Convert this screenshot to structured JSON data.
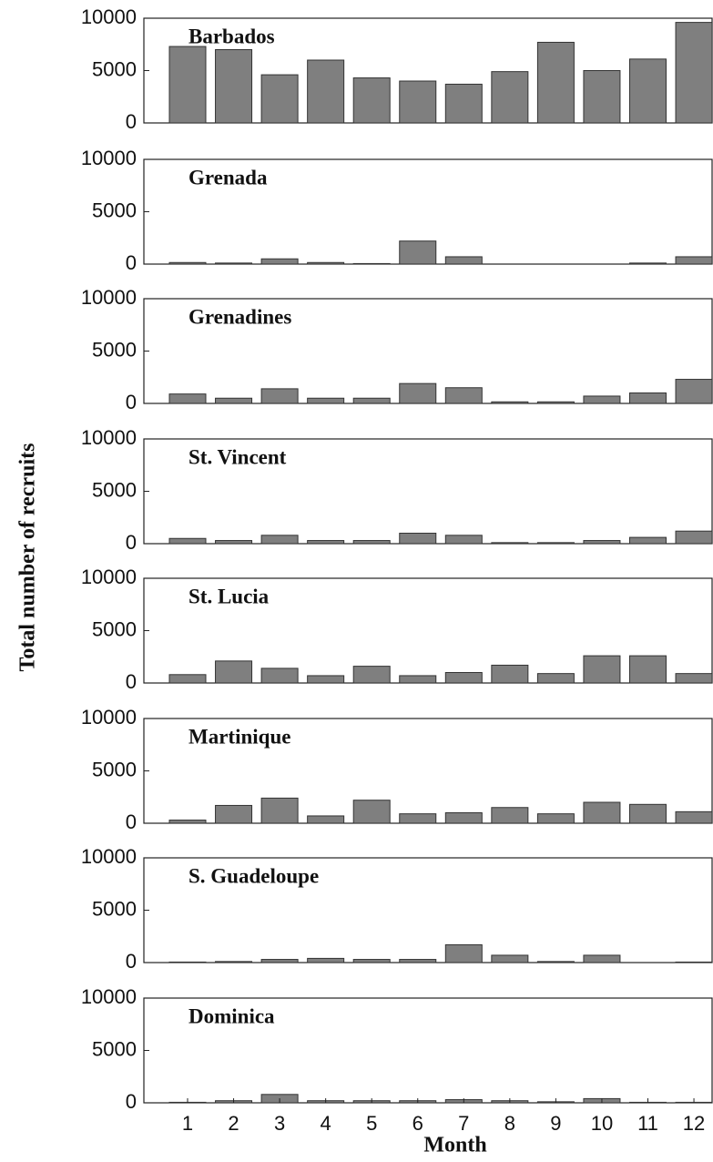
{
  "figure": {
    "x_label": "Month",
    "y_label": "Total number of recruits"
  },
  "chart_data": [
    {
      "type": "bar",
      "title": "Barbados",
      "color": "#7f7f7f",
      "ylim": [
        0,
        10000
      ],
      "yticks": [
        0,
        5000,
        10000
      ],
      "values": [
        7300,
        7000,
        4600,
        6000,
        4300,
        4000,
        3700,
        4900,
        7700,
        5000,
        6100,
        9600
      ]
    },
    {
      "type": "bar",
      "title": "Grenada",
      "color": "#7f7f7f",
      "ylim": [
        0,
        10000
      ],
      "yticks": [
        0,
        5000,
        10000
      ],
      "values": [
        150,
        100,
        500,
        150,
        50,
        2200,
        700,
        0,
        0,
        0,
        100,
        700
      ]
    },
    {
      "type": "bar",
      "title": "Grenadines",
      "color": "#7f7f7f",
      "ylim": [
        0,
        10000
      ],
      "yticks": [
        0,
        5000,
        10000
      ],
      "values": [
        900,
        500,
        1400,
        500,
        500,
        1900,
        1500,
        150,
        150,
        700,
        1000,
        2300
      ]
    },
    {
      "type": "bar",
      "title": "St. Vincent",
      "color": "#7f7f7f",
      "ylim": [
        0,
        10000
      ],
      "yticks": [
        0,
        5000,
        10000
      ],
      "values": [
        500,
        300,
        800,
        300,
        300,
        1000,
        800,
        100,
        100,
        300,
        600,
        1200
      ]
    },
    {
      "type": "bar",
      "title": "St. Lucia",
      "color": "#7f7f7f",
      "ylim": [
        0,
        10000
      ],
      "yticks": [
        0,
        5000,
        10000
      ],
      "values": [
        800,
        2100,
        1400,
        700,
        1600,
        700,
        1000,
        1700,
        900,
        2600,
        2600,
        900
      ]
    },
    {
      "type": "bar",
      "title": "Martinique",
      "color": "#7f7f7f",
      "ylim": [
        0,
        10000
      ],
      "yticks": [
        0,
        5000,
        10000
      ],
      "values": [
        300,
        1700,
        2400,
        700,
        2200,
        900,
        1000,
        1500,
        900,
        2000,
        1800,
        1100
      ]
    },
    {
      "type": "bar",
      "title": "S. Guadeloupe",
      "color": "#7f7f7f",
      "ylim": [
        0,
        10000
      ],
      "yticks": [
        0,
        5000,
        10000
      ],
      "values": [
        50,
        100,
        300,
        400,
        300,
        300,
        1700,
        700,
        100,
        700,
        0,
        50
      ]
    },
    {
      "type": "bar",
      "title": "Dominica",
      "color": "#7f7f7f",
      "ylim": [
        0,
        10000
      ],
      "yticks": [
        0,
        5000,
        10000
      ],
      "categories": [
        1,
        2,
        3,
        4,
        5,
        6,
        7,
        8,
        9,
        10,
        11,
        12
      ],
      "values": [
        50,
        200,
        800,
        200,
        200,
        200,
        300,
        200,
        100,
        400,
        50,
        50
      ]
    }
  ]
}
